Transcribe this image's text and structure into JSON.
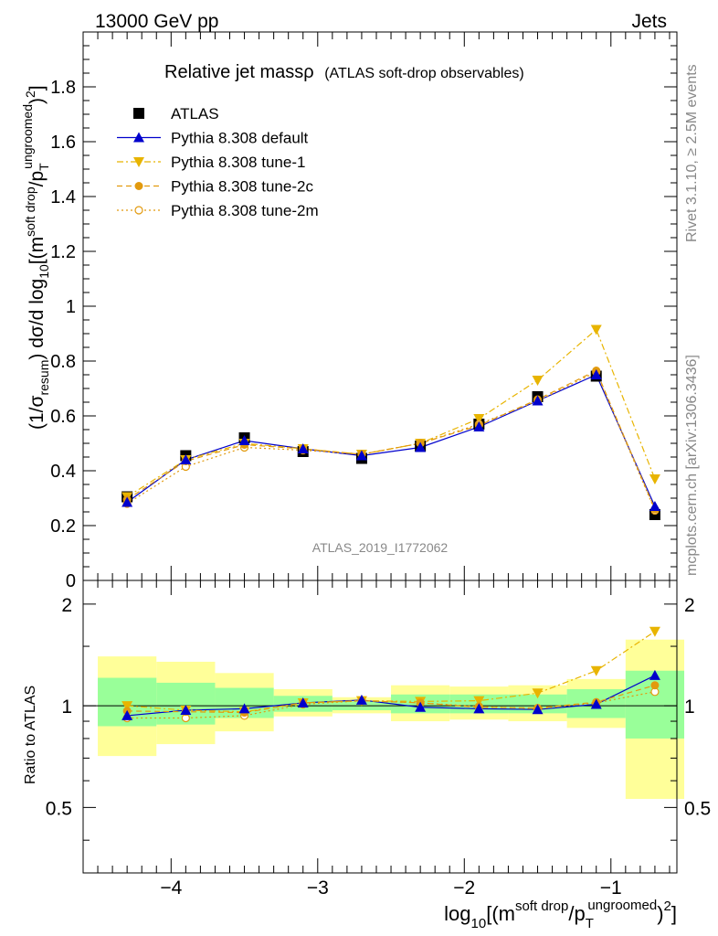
{
  "header": {
    "left": "13000 GeV pp",
    "right": "Jets"
  },
  "side_labels": {
    "rivet": "Rivet 3.1.10, ≥ 2.5M events",
    "mcplots": "mcplots.cern.ch [arXiv:1306.3436]"
  },
  "main_title": {
    "text": "Relative jet massρ",
    "sub": "(ATLAS soft-drop observables)"
  },
  "watermark": "ATLAS_2019_I1772062",
  "colors": {
    "atlas": "#000000",
    "default": "#0000cc",
    "tune1": "#e8b400",
    "tune2c": "#e29a0e",
    "tune2m": "#e29a0e",
    "band_inner": "#99ff99",
    "band_outer": "#ffff99"
  },
  "chart_data": [
    {
      "panel": "main",
      "type": "line",
      "xlim": [
        -4.6,
        -0.55
      ],
      "ylim": [
        0,
        2
      ],
      "ylabel": {
        "a": "(1/σ",
        "a_sub": "resum",
        "b": ") dσ/d log",
        "b_sub": "10",
        "c": "[(m",
        "c_sup": "soft drop",
        "d": "/p",
        "d_sub": "T",
        "d_sup": "ungroomed",
        "e": ")",
        "e_sup": "2",
        "f": "]"
      },
      "x_ticks": [
        -4,
        -3,
        -2,
        -1
      ],
      "y_ticks": [
        0,
        0.2,
        0.4,
        0.6,
        0.8,
        1,
        1.2,
        1.4,
        1.6,
        1.8
      ],
      "y_tick_labels": [
        "0",
        "0.2",
        "0.4",
        "0.6",
        "0.8",
        "1",
        "1.2",
        "1.4",
        "1.6",
        "1.8"
      ],
      "x_edges": [
        -4.5,
        -4.1,
        -3.7,
        -3.3,
        -2.9,
        -2.5,
        -2.1,
        -1.7,
        -1.3,
        -0.9,
        -0.5
      ],
      "x": [
        -4.3,
        -3.9,
        -3.5,
        -3.1,
        -2.7,
        -2.3,
        -1.9,
        -1.5,
        -1.1,
        -0.7
      ],
      "legend_placement": "top-left",
      "series": [
        {
          "name": "ATLAS",
          "key": "atlas",
          "marker": "square",
          "line": "none",
          "values": [
            0.305,
            0.455,
            0.52,
            0.47,
            0.445,
            0.49,
            0.57,
            0.67,
            0.745,
            0.24
          ]
        },
        {
          "name": "Pythia 8.308 default",
          "key": "default",
          "marker": "triangle-up",
          "line": "solid",
          "values": [
            0.285,
            0.44,
            0.51,
            0.48,
            0.455,
            0.485,
            0.56,
            0.655,
            0.75,
            0.27
          ]
        },
        {
          "name": "Pythia 8.308 tune-1",
          "key": "tune1",
          "marker": "triangle-down",
          "line": "dashdot",
          "values": [
            0.305,
            0.44,
            0.5,
            0.48,
            0.46,
            0.5,
            0.59,
            0.73,
            0.915,
            0.37
          ]
        },
        {
          "name": "Pythia 8.308 tune-2c",
          "key": "tune2c",
          "marker": "circle-filled",
          "line": "dashed",
          "values": [
            0.295,
            0.435,
            0.495,
            0.48,
            0.46,
            0.5,
            0.565,
            0.66,
            0.765,
            0.26
          ]
        },
        {
          "name": "Pythia 8.308 tune-2m",
          "key": "tune2m",
          "marker": "circle-open",
          "line": "dotted",
          "values": [
            0.28,
            0.415,
            0.485,
            0.475,
            0.46,
            0.5,
            0.57,
            0.655,
            0.76,
            0.255
          ]
        }
      ]
    },
    {
      "panel": "ratio",
      "type": "line",
      "ylabel": "Ratio to ATLAS",
      "ylim": [
        0.32,
        2.35
      ],
      "y_ticks": [
        0.5,
        1,
        2
      ],
      "y_tick_labels": [
        "0.5",
        "1",
        "2"
      ],
      "xlabel": {
        "a": "log",
        "a_sub": "10",
        "b": "[(m",
        "b_sup": "soft drop",
        "c": "/p",
        "c_sub": "T",
        "c_sup": "ungroomed",
        "d": ")",
        "d_sup": "2",
        "e": "]"
      },
      "x_tick_labels": [
        "−4",
        "−3",
        "−2",
        "−1"
      ],
      "band_outer": [
        [
          0.71,
          1.4
        ],
        [
          0.77,
          1.35
        ],
        [
          0.84,
          1.25
        ],
        [
          0.93,
          1.12
        ],
        [
          0.95,
          1.06
        ],
        [
          0.9,
          1.15
        ],
        [
          0.91,
          1.14
        ],
        [
          0.9,
          1.15
        ],
        [
          0.86,
          1.2
        ],
        [
          0.53,
          1.57
        ]
      ],
      "band_inner": [
        [
          0.87,
          1.21
        ],
        [
          0.88,
          1.17
        ],
        [
          0.92,
          1.13
        ],
        [
          0.96,
          1.07
        ],
        [
          0.97,
          1.03
        ],
        [
          0.95,
          1.08
        ],
        [
          0.95,
          1.08
        ],
        [
          0.95,
          1.08
        ],
        [
          0.92,
          1.12
        ],
        [
          0.8,
          1.27
        ]
      ],
      "series": [
        {
          "name": "Pythia 8.308 default",
          "key": "default",
          "values": [
            0.935,
            0.97,
            0.98,
            1.02,
            1.04,
            0.99,
            0.98,
            0.975,
            1.01,
            1.23
          ]
        },
        {
          "name": "Pythia 8.308 tune-1",
          "key": "tune1",
          "values": [
            1.0,
            0.97,
            0.96,
            1.02,
            1.035,
            1.03,
            1.035,
            1.09,
            1.27,
            1.66
          ]
        },
        {
          "name": "Pythia 8.308 tune-2c",
          "key": "tune2c",
          "values": [
            0.965,
            0.96,
            0.955,
            1.02,
            1.035,
            1.02,
            0.99,
            0.985,
            1.025,
            1.15
          ]
        },
        {
          "name": "Pythia 8.308 tune-2m",
          "key": "tune2m",
          "values": [
            0.92,
            0.92,
            0.935,
            1.01,
            1.035,
            1.02,
            0.995,
            0.98,
            1.02,
            1.1
          ]
        }
      ]
    }
  ]
}
